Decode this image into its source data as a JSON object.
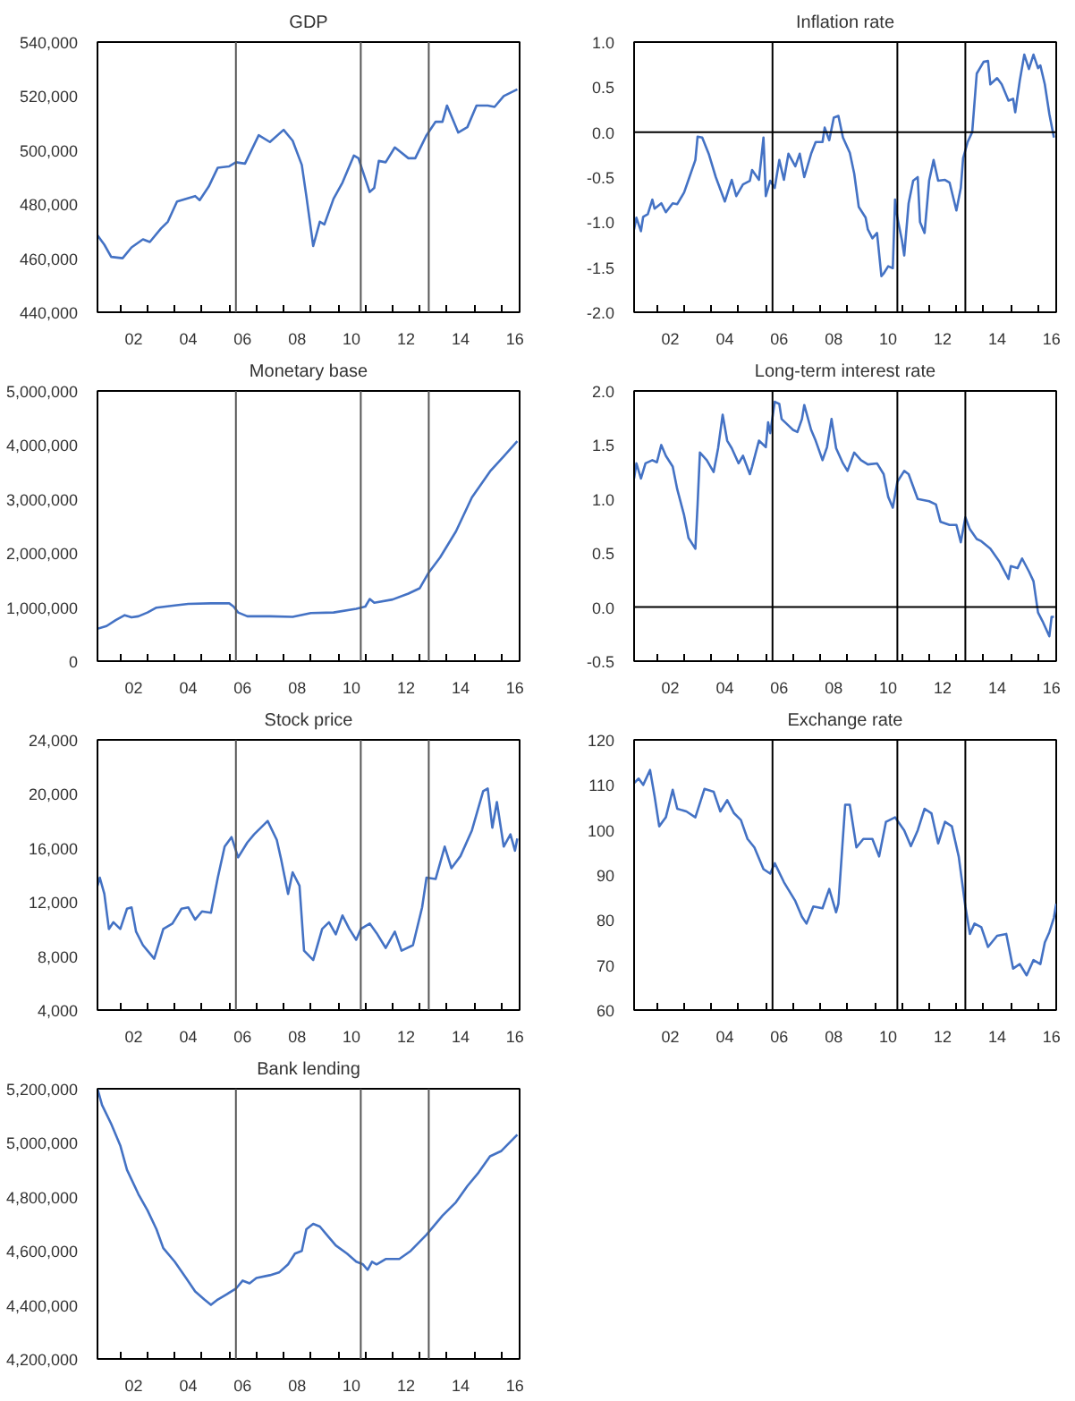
{
  "chart_data": [
    {
      "type": "line",
      "title": "GDP",
      "grid": false,
      "xlim": [
        "2001-03",
        "2016-09"
      ],
      "ylim": [
        440000,
        540000
      ],
      "xticks": [
        {
          "value": "2002-01",
          "label": null
        },
        {
          "value": "2003-01",
          "label": null
        },
        {
          "value": "2004-01",
          "label": null
        },
        {
          "value": "2005-01",
          "label": null
        },
        {
          "value": "2006-01",
          "label": null
        },
        {
          "value": "2007-01",
          "label": null
        },
        {
          "value": "2008-01",
          "label": null
        },
        {
          "value": "2009-01",
          "label": null
        },
        {
          "value": "2010-01",
          "label": null
        },
        {
          "value": "2011-01",
          "label": null
        },
        {
          "value": "2012-01",
          "label": null
        },
        {
          "value": "2013-01",
          "label": null
        },
        {
          "value": "2014-01",
          "label": null
        },
        {
          "value": "2015-01",
          "label": null
        },
        {
          "value": "2016-01",
          "label": null
        },
        {
          "value": "2002-07",
          "label": "02"
        },
        {
          "value": "2004-07",
          "label": "04"
        },
        {
          "value": "2006-07",
          "label": "06"
        },
        {
          "value": "2008-07",
          "label": "08"
        },
        {
          "value": "2010-07",
          "label": "10"
        },
        {
          "value": "2012-07",
          "label": "12"
        },
        {
          "value": "2014-07",
          "label": "14"
        },
        {
          "value": "2016-07",
          "label": "16"
        }
      ],
      "yticks": [
        {
          "value": 440000,
          "label": "440,000"
        },
        {
          "value": 460000,
          "label": "460,000"
        },
        {
          "value": 480000,
          "label": "480,000"
        },
        {
          "value": 500000,
          "label": "500,000"
        },
        {
          "value": 520000,
          "label": "520,000"
        },
        {
          "value": 540000,
          "label": "540,000"
        }
      ],
      "ref_lines": [
        {
          "axis": "x",
          "value": "2006-04",
          "color": "#555555"
        },
        {
          "axis": "x",
          "value": "2010-11",
          "color": "#555555"
        },
        {
          "axis": "x",
          "value": "2013-05",
          "color": "#555555"
        }
      ],
      "x": [
        "2001-03",
        "2001-06",
        "2001-09",
        "2002-02",
        "2002-06",
        "2002-11",
        "2003-02",
        "2003-07",
        "2003-10",
        "2004-02",
        "2004-06",
        "2004-10",
        "2004-12",
        "2005-04",
        "2005-08",
        "2006-01",
        "2006-04",
        "2006-08",
        "2007-02",
        "2007-07",
        "2008-01",
        "2008-05",
        "2008-09",
        "2008-11",
        "2009-02",
        "2009-05",
        "2009-07",
        "2009-11",
        "2010-03",
        "2010-08",
        "2010-10",
        "2011-03",
        "2011-05",
        "2011-07",
        "2011-10",
        "2012-02",
        "2012-08",
        "2012-11",
        "2013-04",
        "2013-08",
        "2013-11",
        "2014-01",
        "2014-06",
        "2014-10",
        "2015-02",
        "2015-07",
        "2015-10",
        "2016-02",
        "2016-08"
      ],
      "series": [
        {
          "color": "#4472c4",
          "values": [
            468500,
            465000,
            460500,
            460000,
            464000,
            467000,
            466000,
            471000,
            473500,
            481000,
            482000,
            483000,
            481500,
            486500,
            493500,
            494000,
            495500,
            495000,
            505500,
            503000,
            507500,
            503500,
            494500,
            483000,
            464500,
            473500,
            472500,
            482000,
            488000,
            498000,
            497000,
            484500,
            486000,
            496000,
            495500,
            501000,
            497000,
            497000,
            505500,
            510500,
            510500,
            516500,
            506500,
            508500,
            516500,
            516500,
            516000,
            520000,
            522500
          ]
        }
      ]
    },
    {
      "type": "line",
      "title": "Inflation rate",
      "grid": false,
      "xlim": [
        "2001-03",
        "2016-09"
      ],
      "ylim": [
        -2.0,
        1.0
      ],
      "xticks": [
        {
          "value": "2002-01",
          "label": null
        },
        {
          "value": "2003-01",
          "label": null
        },
        {
          "value": "2004-01",
          "label": null
        },
        {
          "value": "2005-01",
          "label": null
        },
        {
          "value": "2006-01",
          "label": null
        },
        {
          "value": "2007-01",
          "label": null
        },
        {
          "value": "2008-01",
          "label": null
        },
        {
          "value": "2009-01",
          "label": null
        },
        {
          "value": "2010-01",
          "label": null
        },
        {
          "value": "2011-01",
          "label": null
        },
        {
          "value": "2012-01",
          "label": null
        },
        {
          "value": "2013-01",
          "label": null
        },
        {
          "value": "2014-01",
          "label": null
        },
        {
          "value": "2015-01",
          "label": null
        },
        {
          "value": "2016-01",
          "label": null
        },
        {
          "value": "2002-07",
          "label": "02"
        },
        {
          "value": "2004-07",
          "label": "04"
        },
        {
          "value": "2006-07",
          "label": "06"
        },
        {
          "value": "2008-07",
          "label": "08"
        },
        {
          "value": "2010-07",
          "label": "10"
        },
        {
          "value": "2012-07",
          "label": "12"
        },
        {
          "value": "2014-07",
          "label": "14"
        },
        {
          "value": "2016-07",
          "label": "16"
        }
      ],
      "yticks": [
        {
          "value": -2.0,
          "label": "-2.0"
        },
        {
          "value": -1.5,
          "label": "-1.5"
        },
        {
          "value": -1.0,
          "label": "-1.0"
        },
        {
          "value": -0.5,
          "label": "-0.5"
        },
        {
          "value": 0,
          "label": "0.0"
        },
        {
          "value": 0.5,
          "label": "0.5"
        },
        {
          "value": 1.0,
          "label": "1.0"
        }
      ],
      "ref_lines": [
        {
          "axis": "x",
          "value": "2006-04",
          "color": "#000000"
        },
        {
          "axis": "x",
          "value": "2010-11",
          "color": "#000000"
        },
        {
          "axis": "x",
          "value": "2013-05",
          "color": "#000000"
        },
        {
          "axis": "y",
          "value": 0,
          "color": "#000000"
        }
      ],
      "x": [
        "2001-03",
        "2001-04",
        "2001-06",
        "2001-07",
        "2001-09",
        "2001-11",
        "2001-12",
        "2002-03",
        "2002-05",
        "2002-08",
        "2002-10",
        "2003-01",
        "2003-03",
        "2003-06",
        "2003-07",
        "2003-09",
        "2003-12",
        "2004-03",
        "2004-07",
        "2004-10",
        "2004-12",
        "2005-03",
        "2005-06",
        "2005-07",
        "2005-10",
        "2005-12",
        "2006-01",
        "2006-03",
        "2006-05",
        "2006-07",
        "2006-09",
        "2006-11",
        "2007-02",
        "2007-04",
        "2007-06",
        "2007-09",
        "2007-11",
        "2008-02",
        "2008-03",
        "2008-05",
        "2008-07",
        "2008-09",
        "2008-11",
        "2009-02",
        "2009-04",
        "2009-06",
        "2009-09",
        "2009-10",
        "2009-12",
        "2010-02",
        "2010-04",
        "2010-05",
        "2010-07",
        "2010-09",
        "2010-10",
        "2010-11",
        "2011-01",
        "2011-02",
        "2011-04",
        "2011-06",
        "2011-08",
        "2011-09",
        "2011-11",
        "2012-01",
        "2012-03",
        "2012-05",
        "2012-08",
        "2012-10",
        "2013-01",
        "2013-03",
        "2013-04",
        "2013-06",
        "2013-08",
        "2013-10",
        "2014-01",
        "2014-03",
        "2014-04",
        "2014-07",
        "2014-09",
        "2014-12",
        "2015-02",
        "2015-03",
        "2015-05",
        "2015-07",
        "2015-09",
        "2015-11",
        "2016-01",
        "2016-02",
        "2016-04",
        "2016-06",
        "2016-08"
      ],
      "series": [
        {
          "color": "#4472c4",
          "values": [
            -1.08,
            -0.95,
            -1.1,
            -0.94,
            -0.91,
            -0.75,
            -0.85,
            -0.79,
            -0.89,
            -0.79,
            -0.8,
            -0.67,
            -0.53,
            -0.31,
            -0.05,
            -0.06,
            -0.25,
            -0.5,
            -0.77,
            -0.53,
            -0.71,
            -0.58,
            -0.54,
            -0.42,
            -0.53,
            -0.06,
            -0.71,
            -0.54,
            -0.62,
            -0.31,
            -0.53,
            -0.24,
            -0.38,
            -0.24,
            -0.5,
            -0.24,
            -0.11,
            -0.11,
            0.05,
            -0.09,
            0.16,
            0.18,
            -0.06,
            -0.23,
            -0.46,
            -0.83,
            -0.95,
            -1.08,
            -1.18,
            -1.12,
            -1.6,
            -1.57,
            -1.49,
            -1.51,
            -0.75,
            -0.95,
            -1.2,
            -1.37,
            -0.79,
            -0.54,
            -0.5,
            -1.0,
            -1.12,
            -0.54,
            -0.31,
            -0.54,
            -0.53,
            -0.56,
            -0.87,
            -0.62,
            -0.29,
            -0.11,
            0.0,
            0.65,
            0.78,
            0.79,
            0.53,
            0.6,
            0.53,
            0.35,
            0.37,
            0.22,
            0.57,
            0.86,
            0.7,
            0.86,
            0.71,
            0.74,
            0.53,
            0.2,
            -0.06
          ]
        }
      ]
    },
    {
      "type": "line",
      "title": "Monetary base",
      "grid": false,
      "xlim": [
        "2001-03",
        "2016-09"
      ],
      "ylim": [
        0,
        5000000
      ],
      "xticks": [
        {
          "value": "2002-01",
          "label": null
        },
        {
          "value": "2003-01",
          "label": null
        },
        {
          "value": "2004-01",
          "label": null
        },
        {
          "value": "2005-01",
          "label": null
        },
        {
          "value": "2006-01",
          "label": null
        },
        {
          "value": "2007-01",
          "label": null
        },
        {
          "value": "2008-01",
          "label": null
        },
        {
          "value": "2009-01",
          "label": null
        },
        {
          "value": "2010-01",
          "label": null
        },
        {
          "value": "2011-01",
          "label": null
        },
        {
          "value": "2012-01",
          "label": null
        },
        {
          "value": "2013-01",
          "label": null
        },
        {
          "value": "2014-01",
          "label": null
        },
        {
          "value": "2015-01",
          "label": null
        },
        {
          "value": "2016-01",
          "label": null
        },
        {
          "value": "2002-07",
          "label": "02"
        },
        {
          "value": "2004-07",
          "label": "04"
        },
        {
          "value": "2006-07",
          "label": "06"
        },
        {
          "value": "2008-07",
          "label": "08"
        },
        {
          "value": "2010-07",
          "label": "10"
        },
        {
          "value": "2012-07",
          "label": "12"
        },
        {
          "value": "2014-07",
          "label": "14"
        },
        {
          "value": "2016-07",
          "label": "16"
        }
      ],
      "yticks": [
        0,
        {
          "value": 1000000,
          "label": "1,000,000"
        },
        {
          "value": 2000000,
          "label": "2,000,000"
        },
        {
          "value": 3000000,
          "label": "3,000,000"
        },
        {
          "value": 4000000,
          "label": "4,000,000"
        },
        {
          "value": 5000000,
          "label": "5,000,000"
        }
      ],
      "ref_lines": [
        {
          "axis": "x",
          "value": "2006-04",
          "color": "#555555"
        },
        {
          "axis": "x",
          "value": "2010-11",
          "color": "#555555"
        },
        {
          "axis": "x",
          "value": "2013-05",
          "color": "#555555"
        }
      ],
      "x": [
        "2001-03",
        "2001-07",
        "2001-11",
        "2002-03",
        "2002-06",
        "2002-09",
        "2003-01",
        "2003-05",
        "2004-01",
        "2004-07",
        "2005-05",
        "2006-01",
        "2006-03",
        "2006-05",
        "2006-09",
        "2007-07",
        "2008-05",
        "2009-01",
        "2009-11",
        "2010-09",
        "2011-01",
        "2011-03",
        "2011-05",
        "2012-01",
        "2012-08",
        "2013-01",
        "2013-05",
        "2013-10",
        "2014-05",
        "2014-12",
        "2015-08",
        "2016-02",
        "2016-08"
      ],
      "series": [
        {
          "color": "#4472c4",
          "values": [
            600000,
            650000,
            760000,
            850000,
            810000,
            830000,
            900000,
            990000,
            1030000,
            1060000,
            1070000,
            1070000,
            1010000,
            900000,
            830000,
            830000,
            820000,
            890000,
            900000,
            970000,
            1010000,
            1150000,
            1080000,
            1140000,
            1250000,
            1350000,
            1640000,
            1920000,
            2400000,
            3030000,
            3510000,
            3790000,
            4070000
          ]
        }
      ]
    },
    {
      "type": "line",
      "title": "Long-term interest rate",
      "grid": false,
      "xlim": [
        "2001-03",
        "2016-09"
      ],
      "ylim": [
        -0.5,
        2.0
      ],
      "xticks": [
        {
          "value": "2002-01",
          "label": null
        },
        {
          "value": "2003-01",
          "label": null
        },
        {
          "value": "2004-01",
          "label": null
        },
        {
          "value": "2005-01",
          "label": null
        },
        {
          "value": "2006-01",
          "label": null
        },
        {
          "value": "2007-01",
          "label": null
        },
        {
          "value": "2008-01",
          "label": null
        },
        {
          "value": "2009-01",
          "label": null
        },
        {
          "value": "2010-01",
          "label": null
        },
        {
          "value": "2011-01",
          "label": null
        },
        {
          "value": "2012-01",
          "label": null
        },
        {
          "value": "2013-01",
          "label": null
        },
        {
          "value": "2014-01",
          "label": null
        },
        {
          "value": "2015-01",
          "label": null
        },
        {
          "value": "2016-01",
          "label": null
        },
        {
          "value": "2002-07",
          "label": "02"
        },
        {
          "value": "2004-07",
          "label": "04"
        },
        {
          "value": "2006-07",
          "label": "06"
        },
        {
          "value": "2008-07",
          "label": "08"
        },
        {
          "value": "2010-07",
          "label": "10"
        },
        {
          "value": "2012-07",
          "label": "12"
        },
        {
          "value": "2014-07",
          "label": "14"
        },
        {
          "value": "2016-07",
          "label": "16"
        }
      ],
      "yticks": [
        {
          "value": -0.5,
          "label": "-0.5"
        },
        {
          "value": 0,
          "label": "0.0"
        },
        {
          "value": 0.5,
          "label": "0.5"
        },
        {
          "value": 1.0,
          "label": "1.0"
        },
        {
          "value": 1.5,
          "label": "1.5"
        },
        {
          "value": 2.0,
          "label": "2.0"
        }
      ],
      "ref_lines": [
        {
          "axis": "x",
          "value": "2006-04",
          "color": "#000000"
        },
        {
          "axis": "x",
          "value": "2010-11",
          "color": "#000000"
        },
        {
          "axis": "x",
          "value": "2013-05",
          "color": "#000000"
        },
        {
          "axis": "y",
          "value": 0,
          "color": "#000000"
        }
      ],
      "x": [
        "2001-03",
        "2001-04",
        "2001-06",
        "2001-08",
        "2001-11",
        "2002-01",
        "2002-03",
        "2002-05",
        "2002-08",
        "2002-10",
        "2003-01",
        "2003-03",
        "2003-06",
        "2003-07",
        "2003-08",
        "2003-11",
        "2004-02",
        "2004-04",
        "2004-06",
        "2004-08",
        "2004-10",
        "2005-01",
        "2005-03",
        "2005-06",
        "2005-07",
        "2005-10",
        "2006-01",
        "2006-02",
        "2006-03",
        "2006-05",
        "2006-07",
        "2006-08",
        "2006-11",
        "2007-01",
        "2007-03",
        "2007-05",
        "2007-06",
        "2007-09",
        "2007-11",
        "2008-02",
        "2008-04",
        "2008-06",
        "2008-08",
        "2008-11",
        "2009-01",
        "2009-04",
        "2009-07",
        "2009-10",
        "2010-02",
        "2010-05",
        "2010-07",
        "2010-09",
        "2010-11",
        "2011-02",
        "2011-04",
        "2011-08",
        "2012-01",
        "2012-04",
        "2012-06",
        "2012-10",
        "2013-01",
        "2013-03",
        "2013-05",
        "2013-07",
        "2013-10",
        "2013-12",
        "2014-04",
        "2014-08",
        "2014-12",
        "2015-01",
        "2015-04",
        "2015-06",
        "2015-09",
        "2015-11",
        "2016-01",
        "2016-03",
        "2016-06",
        "2016-07",
        "2016-08"
      ],
      "series": [
        {
          "color": "#4472c4",
          "values": [
            1.19,
            1.33,
            1.19,
            1.33,
            1.36,
            1.34,
            1.5,
            1.4,
            1.3,
            1.09,
            0.85,
            0.64,
            0.54,
            0.95,
            1.43,
            1.36,
            1.25,
            1.47,
            1.78,
            1.54,
            1.47,
            1.33,
            1.4,
            1.23,
            1.3,
            1.54,
            1.48,
            1.71,
            1.61,
            1.9,
            1.88,
            1.74,
            1.68,
            1.64,
            1.62,
            1.74,
            1.87,
            1.64,
            1.54,
            1.36,
            1.48,
            1.74,
            1.47,
            1.33,
            1.26,
            1.43,
            1.36,
            1.32,
            1.33,
            1.23,
            1.02,
            0.92,
            1.16,
            1.26,
            1.23,
            1.0,
            0.98,
            0.95,
            0.79,
            0.76,
            0.76,
            0.6,
            0.83,
            0.72,
            0.63,
            0.61,
            0.54,
            0.42,
            0.26,
            0.38,
            0.36,
            0.45,
            0.33,
            0.24,
            -0.05,
            -0.13,
            -0.27,
            -0.09,
            -0.09
          ]
        }
      ]
    },
    {
      "type": "line",
      "title": "Stock price",
      "grid": false,
      "xlim": [
        "2001-03",
        "2016-09"
      ],
      "ylim": [
        4000,
        24000
      ],
      "xticks": [
        {
          "value": "2002-01",
          "label": null
        },
        {
          "value": "2003-01",
          "label": null
        },
        {
          "value": "2004-01",
          "label": null
        },
        {
          "value": "2005-01",
          "label": null
        },
        {
          "value": "2006-01",
          "label": null
        },
        {
          "value": "2007-01",
          "label": null
        },
        {
          "value": "2008-01",
          "label": null
        },
        {
          "value": "2009-01",
          "label": null
        },
        {
          "value": "2010-01",
          "label": null
        },
        {
          "value": "2011-01",
          "label": null
        },
        {
          "value": "2012-01",
          "label": null
        },
        {
          "value": "2013-01",
          "label": null
        },
        {
          "value": "2014-01",
          "label": null
        },
        {
          "value": "2015-01",
          "label": null
        },
        {
          "value": "2016-01",
          "label": null
        },
        {
          "value": "2002-07",
          "label": "02"
        },
        {
          "value": "2004-07",
          "label": "04"
        },
        {
          "value": "2006-07",
          "label": "06"
        },
        {
          "value": "2008-07",
          "label": "08"
        },
        {
          "value": "2010-07",
          "label": "10"
        },
        {
          "value": "2012-07",
          "label": "12"
        },
        {
          "value": "2014-07",
          "label": "14"
        },
        {
          "value": "2016-07",
          "label": "16"
        }
      ],
      "yticks": [
        {
          "value": 4000,
          "label": "4,000"
        },
        {
          "value": 8000,
          "label": "8,000"
        },
        {
          "value": 12000,
          "label": "12,000"
        },
        {
          "value": 16000,
          "label": "16,000"
        },
        {
          "value": 20000,
          "label": "20,000"
        },
        {
          "value": 24000,
          "label": "24,000"
        }
      ],
      "ref_lines": [
        {
          "axis": "x",
          "value": "2006-04",
          "color": "#555555"
        },
        {
          "axis": "x",
          "value": "2010-11",
          "color": "#555555"
        },
        {
          "axis": "x",
          "value": "2013-05",
          "color": "#555555"
        }
      ],
      "x": [
        "2001-03",
        "2001-04",
        "2001-06",
        "2001-08",
        "2001-10",
        "2002-01",
        "2002-04",
        "2002-06",
        "2002-08",
        "2002-11",
        "2003-01",
        "2003-04",
        "2003-08",
        "2003-12",
        "2004-04",
        "2004-07",
        "2004-10",
        "2005-01",
        "2005-05",
        "2005-08",
        "2005-11",
        "2006-02",
        "2006-05",
        "2006-09",
        "2006-12",
        "2007-06",
        "2007-10",
        "2007-12",
        "2008-03",
        "2008-05",
        "2008-08",
        "2008-10",
        "2009-02",
        "2009-06",
        "2009-09",
        "2009-12",
        "2010-03",
        "2010-06",
        "2010-09",
        "2010-11",
        "2011-03",
        "2011-06",
        "2011-10",
        "2012-02",
        "2012-05",
        "2012-10",
        "2013-02",
        "2013-04",
        "2013-08",
        "2013-12",
        "2014-03",
        "2014-07",
        "2014-12",
        "2015-05",
        "2015-07",
        "2015-09",
        "2015-11",
        "2016-02",
        "2016-05",
        "2016-07",
        "2016-08"
      ],
      "series": [
        {
          "color": "#4472c4",
          "values": [
            13200,
            13800,
            12600,
            10000,
            10500,
            10000,
            11500,
            11600,
            9800,
            8800,
            8400,
            7800,
            10000,
            10400,
            11500,
            11600,
            10700,
            11300,
            11200,
            13800,
            16100,
            16800,
            15300,
            16400,
            17000,
            18000,
            16600,
            15100,
            12600,
            14200,
            13200,
            8400,
            7700,
            10000,
            10500,
            9600,
            11000,
            10000,
            9200,
            10000,
            10400,
            9700,
            8600,
            9800,
            8400,
            8800,
            11600,
            13800,
            13700,
            16100,
            14500,
            15400,
            17300,
            20200,
            20400,
            17500,
            19400,
            16100,
            17000,
            15800,
            16700
          ]
        }
      ]
    },
    {
      "type": "line",
      "title": "Exchange rate",
      "grid": false,
      "xlim": [
        "2001-03",
        "2016-09"
      ],
      "ylim": [
        60,
        120
      ],
      "xticks": [
        {
          "value": "2002-01",
          "label": null
        },
        {
          "value": "2003-01",
          "label": null
        },
        {
          "value": "2004-01",
          "label": null
        },
        {
          "value": "2005-01",
          "label": null
        },
        {
          "value": "2006-01",
          "label": null
        },
        {
          "value": "2007-01",
          "label": null
        },
        {
          "value": "2008-01",
          "label": null
        },
        {
          "value": "2009-01",
          "label": null
        },
        {
          "value": "2010-01",
          "label": null
        },
        {
          "value": "2011-01",
          "label": null
        },
        {
          "value": "2012-01",
          "label": null
        },
        {
          "value": "2013-01",
          "label": null
        },
        {
          "value": "2014-01",
          "label": null
        },
        {
          "value": "2015-01",
          "label": null
        },
        {
          "value": "2016-01",
          "label": null
        },
        {
          "value": "2002-07",
          "label": "02"
        },
        {
          "value": "2004-07",
          "label": "04"
        },
        {
          "value": "2006-07",
          "label": "06"
        },
        {
          "value": "2008-07",
          "label": "08"
        },
        {
          "value": "2010-07",
          "label": "10"
        },
        {
          "value": "2012-07",
          "label": "12"
        },
        {
          "value": "2014-07",
          "label": "14"
        },
        {
          "value": "2016-07",
          "label": "16"
        }
      ],
      "yticks": [
        60,
        70,
        80,
        90,
        100,
        110,
        120
      ],
      "ref_lines": [
        {
          "axis": "x",
          "value": "2006-04",
          "color": "#000000"
        },
        {
          "axis": "x",
          "value": "2010-11",
          "color": "#000000"
        },
        {
          "axis": "x",
          "value": "2013-05",
          "color": "#000000"
        }
      ],
      "x": [
        "2001-03",
        "2001-05",
        "2001-07",
        "2001-10",
        "2001-12",
        "2002-02",
        "2002-05",
        "2002-08",
        "2002-10",
        "2003-02",
        "2003-06",
        "2003-10",
        "2004-02",
        "2004-05",
        "2004-08",
        "2004-11",
        "2005-02",
        "2005-05",
        "2005-08",
        "2005-12",
        "2006-03",
        "2006-05",
        "2006-09",
        "2007-02",
        "2007-05",
        "2007-07",
        "2007-10",
        "2008-02",
        "2008-05",
        "2008-08",
        "2008-09",
        "2008-12",
        "2009-02",
        "2009-05",
        "2009-08",
        "2009-12",
        "2010-03",
        "2010-06",
        "2010-10",
        "2011-02",
        "2011-05",
        "2011-08",
        "2011-11",
        "2012-02",
        "2012-05",
        "2012-08",
        "2012-11",
        "2013-02",
        "2013-05",
        "2013-07",
        "2013-09",
        "2013-12",
        "2014-03",
        "2014-07",
        "2014-11",
        "2015-02",
        "2015-05",
        "2015-08",
        "2015-11",
        "2016-02",
        "2016-04",
        "2016-06",
        "2016-08",
        "2016-09"
      ],
      "series": [
        {
          "color": "#4472c4",
          "values": [
            110.4,
            111.4,
            110.0,
            113.3,
            107.5,
            100.8,
            102.8,
            108.9,
            104.7,
            104.1,
            102.8,
            109.1,
            108.5,
            104.1,
            106.6,
            103.7,
            102.2,
            98.0,
            96.1,
            91.3,
            90.3,
            92.6,
            88.4,
            84.2,
            80.7,
            79.2,
            83.0,
            82.6,
            86.9,
            81.7,
            83.6,
            105.6,
            105.6,
            96.1,
            98.0,
            98.0,
            94.1,
            101.8,
            102.8,
            99.9,
            96.4,
            99.9,
            104.7,
            103.7,
            97.0,
            101.8,
            100.8,
            94.1,
            83.0,
            76.9,
            79.2,
            78.4,
            74.0,
            76.5,
            76.9,
            69.2,
            70.2,
            67.7,
            71.1,
            70.2,
            75.0,
            77.3,
            80.5,
            83.6
          ]
        }
      ]
    },
    {
      "type": "line",
      "title": "Bank lending",
      "grid": false,
      "xlim": [
        "2001-03",
        "2016-09"
      ],
      "ylim": [
        4200000,
        5200000
      ],
      "xticks": [
        {
          "value": "2002-01",
          "label": null
        },
        {
          "value": "2003-01",
          "label": null
        },
        {
          "value": "2004-01",
          "label": null
        },
        {
          "value": "2005-01",
          "label": null
        },
        {
          "value": "2006-01",
          "label": null
        },
        {
          "value": "2007-01",
          "label": null
        },
        {
          "value": "2008-01",
          "label": null
        },
        {
          "value": "2009-01",
          "label": null
        },
        {
          "value": "2010-01",
          "label": null
        },
        {
          "value": "2011-01",
          "label": null
        },
        {
          "value": "2012-01",
          "label": null
        },
        {
          "value": "2013-01",
          "label": null
        },
        {
          "value": "2014-01",
          "label": null
        },
        {
          "value": "2015-01",
          "label": null
        },
        {
          "value": "2016-01",
          "label": null
        },
        {
          "value": "2002-07",
          "label": "02"
        },
        {
          "value": "2004-07",
          "label": "04"
        },
        {
          "value": "2006-07",
          "label": "06"
        },
        {
          "value": "2008-07",
          "label": "08"
        },
        {
          "value": "2010-07",
          "label": "10"
        },
        {
          "value": "2012-07",
          "label": "12"
        },
        {
          "value": "2014-07",
          "label": "14"
        },
        {
          "value": "2016-07",
          "label": "16"
        }
      ],
      "yticks": [
        {
          "value": 4200000,
          "label": "4,200,000"
        },
        {
          "value": 4400000,
          "label": "4,400,000"
        },
        {
          "value": 4600000,
          "label": "4,600,000"
        },
        {
          "value": 4800000,
          "label": "4,800,000"
        },
        {
          "value": 5000000,
          "label": "5,000,000"
        },
        {
          "value": 5200000,
          "label": "5,200,000"
        }
      ],
      "ref_lines": [
        {
          "axis": "x",
          "value": "2006-04",
          "color": "#555555"
        },
        {
          "axis": "x",
          "value": "2010-11",
          "color": "#555555"
        },
        {
          "axis": "x",
          "value": "2013-05",
          "color": "#555555"
        }
      ],
      "x": [
        "2001-03",
        "2001-05",
        "2001-09",
        "2002-01",
        "2002-04",
        "2002-09",
        "2003-01",
        "2003-05",
        "2003-08",
        "2004-01",
        "2004-06",
        "2004-10",
        "2005-02",
        "2005-05",
        "2005-08",
        "2005-12",
        "2006-04",
        "2006-07",
        "2006-10",
        "2007-01",
        "2007-07",
        "2007-11",
        "2008-03",
        "2008-06",
        "2008-09",
        "2008-11",
        "2009-02",
        "2009-05",
        "2009-08",
        "2009-12",
        "2010-05",
        "2010-09",
        "2010-12",
        "2011-02",
        "2011-04",
        "2011-06",
        "2011-10",
        "2012-04",
        "2012-09",
        "2013-04",
        "2013-11",
        "2014-05",
        "2014-10",
        "2015-03",
        "2015-08",
        "2016-01",
        "2016-08"
      ],
      "series": [
        {
          "color": "#4472c4",
          "values": [
            5200000,
            5140000,
            5070000,
            4990000,
            4900000,
            4810000,
            4750000,
            4680000,
            4610000,
            4560000,
            4500000,
            4450000,
            4420000,
            4400000,
            4420000,
            4440000,
            4460000,
            4490000,
            4480000,
            4500000,
            4510000,
            4520000,
            4550000,
            4590000,
            4600000,
            4680000,
            4700000,
            4690000,
            4660000,
            4620000,
            4590000,
            4560000,
            4550000,
            4530000,
            4560000,
            4550000,
            4570000,
            4570000,
            4600000,
            4660000,
            4730000,
            4780000,
            4840000,
            4890000,
            4950000,
            4970000,
            5030000
          ]
        }
      ]
    }
  ]
}
